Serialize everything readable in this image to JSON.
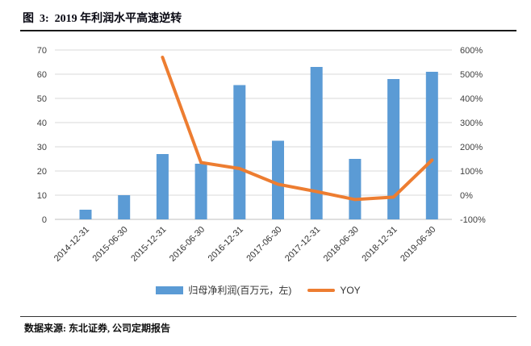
{
  "title": "图  3:  2019 年利润水平高速逆转",
  "footer": {
    "source_label": "数据来源: 东北证券, 公司定期报告"
  },
  "colors": {
    "bar": "#5B9BD5",
    "line": "#ED7D31",
    "grid": "#D9D9D9",
    "axis_line": "#BFBFBF",
    "tick_text": "#404040",
    "title_rule": "#1A1A1A"
  },
  "chart_data": {
    "type": "bar",
    "subtype": "bar-line-combo",
    "categories": [
      "2014-12-31",
      "2015-06-30",
      "2015-12-31",
      "2016-06-30",
      "2016-12-31",
      "2017-06-30",
      "2017-12-31",
      "2018-06-30",
      "2018-12-31",
      "2019-06-30"
    ],
    "series": [
      {
        "name": "归母净利润(百万元，左)",
        "type": "bar",
        "axis": "left",
        "values": [
          4,
          10,
          27,
          23,
          55.5,
          32.5,
          63,
          25,
          58,
          61
        ]
      },
      {
        "name": "YOY",
        "type": "line",
        "axis": "right",
        "values": [
          null,
          null,
          570,
          135,
          110,
          45,
          15,
          -18,
          -8,
          145
        ]
      }
    ],
    "left_axis": {
      "min": 0,
      "max": 70,
      "step": 10,
      "tick_labels": [
        "0",
        "10",
        "20",
        "30",
        "40",
        "50",
        "60",
        "70"
      ]
    },
    "right_axis": {
      "min": -100,
      "max": 600,
      "step": 100,
      "tick_labels": [
        "-100%",
        "0%",
        "100%",
        "200%",
        "300%",
        "400%",
        "500%",
        "600%"
      ]
    },
    "grid": true,
    "legend_position": "bottom",
    "x_label_rotation": -45
  }
}
